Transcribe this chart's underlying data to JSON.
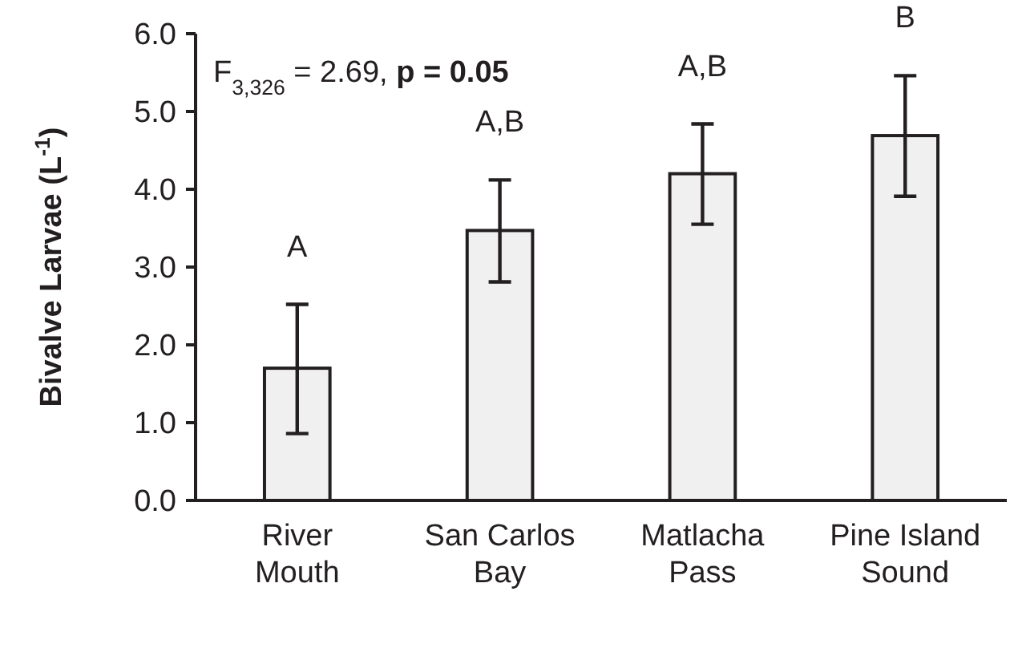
{
  "chart_data": {
    "type": "bar",
    "ylabel": "Bivalve Larvae (L$^{-1}$)",
    "categories": [
      "River Mouth",
      "San Carlos Bay",
      "Matlacha Pass",
      "Pine Island Sound"
    ],
    "values": [
      1.7,
      3.47,
      4.2,
      4.69
    ],
    "errors": [
      [
        0.86,
        2.52
      ],
      [
        2.81,
        4.12
      ],
      [
        3.55,
        4.84
      ],
      [
        3.91,
        5.46
      ]
    ],
    "color": "#f0f0f0",
    "ylim": [
      0,
      6
    ],
    "yticks": [
      {
        "value": 0,
        "label": "0.0"
      },
      {
        "value": 1,
        "label": "1.0"
      },
      {
        "value": 2,
        "label": "2.0"
      },
      {
        "value": 3,
        "label": "3.0"
      },
      {
        "value": 4,
        "label": "4.0"
      },
      {
        "value": 5,
        "label": "5.0"
      },
      {
        "value": 6,
        "label": "6.0"
      }
    ],
    "grid": false,
    "annotations": [
      "F$_{3,326}$ = 2.69, p = 0.05",
      "A",
      "A,B",
      "A,B",
      "B"
    ]
  }
}
